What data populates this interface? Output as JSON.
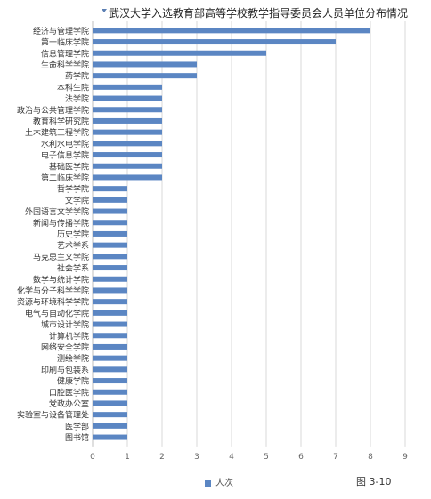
{
  "chart_data": {
    "type": "bar",
    "orientation": "horizontal",
    "title": "武汉大学入选教育部高等学校教学指导委员会人员单位分布情况",
    "categories": [
      "经济与管理学院",
      "第一临床学院",
      "信息管理学院",
      "生命科学学院",
      "药学院",
      "本科生院",
      "法学院",
      "政治与公共管理学院",
      "教育科学研究院",
      "土木建筑工程学院",
      "水利水电学院",
      "电子信息学院",
      "基础医学院",
      "第二临床学院",
      "哲学学院",
      "文学院",
      "外国语言文学学院",
      "新闻与传播学院",
      "历史学院",
      "艺术学系",
      "马克思主义学院",
      "社会学系",
      "数学与统计学院",
      "化学与分子科学学院",
      "资源与环境科学学院",
      "电气与自动化学院",
      "城市设计学院",
      "计算机学院",
      "网络安全学院",
      "测绘学院",
      "印刷与包装系",
      "健康学院",
      "口腔医学院",
      "党政办公室",
      "实验室与设备管理处",
      "医学部",
      "图书馆"
    ],
    "series": [
      {
        "name": "人次",
        "values": [
          8,
          7,
          5,
          3,
          3,
          2,
          2,
          2,
          2,
          2,
          2,
          2,
          2,
          2,
          1,
          1,
          1,
          1,
          1,
          1,
          1,
          1,
          1,
          1,
          1,
          1,
          1,
          1,
          1,
          1,
          1,
          1,
          1,
          1,
          1,
          1,
          1
        ]
      }
    ],
    "xlim": [
      0,
      9
    ],
    "x_ticks": [
      0,
      1,
      2,
      3,
      4,
      5,
      6,
      7,
      8,
      9
    ],
    "grid": true,
    "legend_position": "bottom",
    "bar_color": "#5b86c3"
  },
  "figure_label": "图 3-10"
}
